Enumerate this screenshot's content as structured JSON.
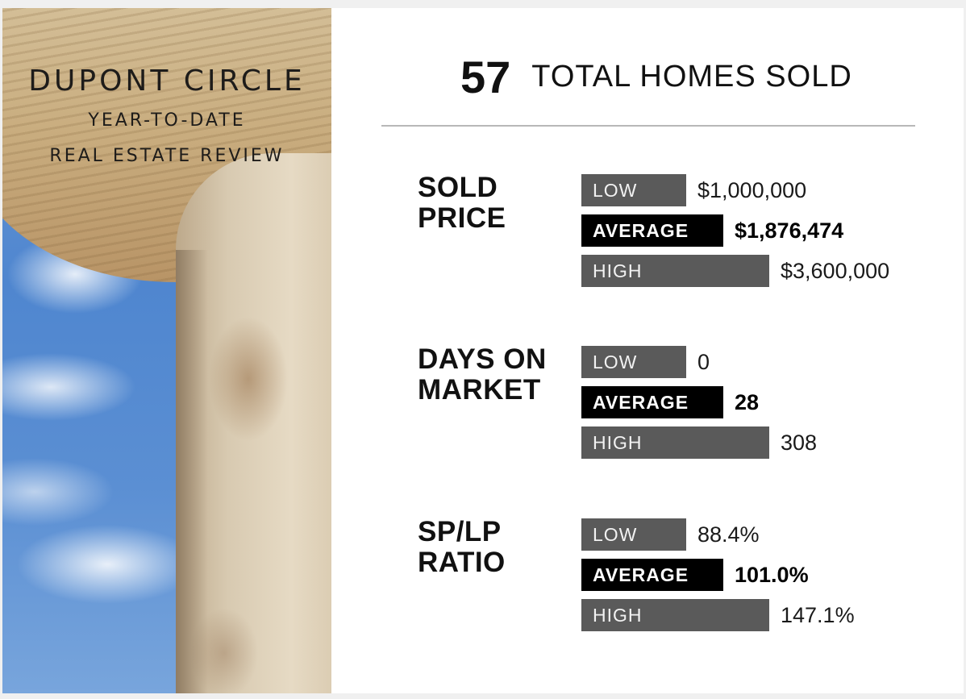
{
  "brand": {
    "neighborhood": "DUPONT CIRCLE",
    "period": "YEAR-TO-DATE",
    "report": "REAL ESTATE REVIEW"
  },
  "summary": {
    "total_count": "57",
    "total_label": "TOTAL HOMES SOLD"
  },
  "stats": [
    {
      "label": "SOLD PRICE",
      "low_label": "LOW",
      "low_value": "$1,000,000",
      "avg_label": "AVERAGE",
      "avg_value": "$1,876,474",
      "high_label": "HIGH",
      "high_value": "$3,600,000"
    },
    {
      "label": "DAYS ON MARKET",
      "low_label": "LOW",
      "low_value": "0",
      "avg_label": "AVERAGE",
      "avg_value": "28",
      "high_label": "HIGH",
      "high_value": "308"
    },
    {
      "label": "SP/LP RATIO",
      "low_label": "LOW",
      "low_value": "88.4%",
      "avg_label": "AVERAGE",
      "avg_value": "101.0%",
      "high_label": "HIGH",
      "high_value": "147.1%"
    }
  ],
  "colors": {
    "low_high_bar": "#5a5a5a",
    "average_bar": "#000000",
    "divider": "#b8b8b8"
  }
}
